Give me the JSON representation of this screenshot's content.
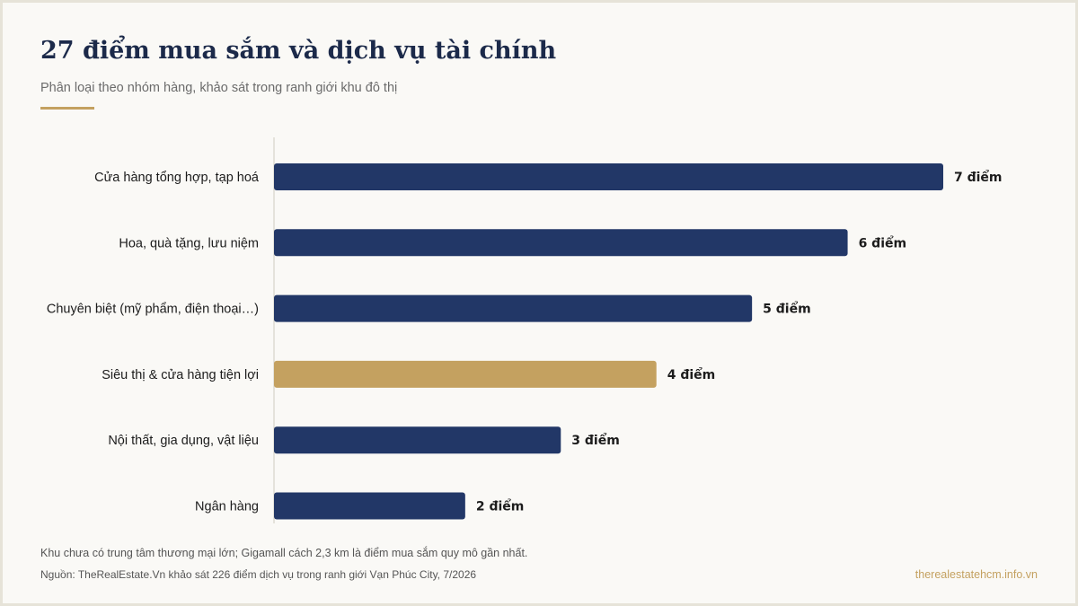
{
  "header": {
    "title": "27 điểm mua sắm và dịch vụ tài chính",
    "subtitle": "Phân loại theo nhóm hàng, khảo sát trong ranh giới khu đô thị"
  },
  "colors": {
    "primary": "#223767",
    "highlight": "#c4a160",
    "axis": "#dddad2",
    "label": "#1c1c1c"
  },
  "chart_data": {
    "type": "bar",
    "orientation": "horizontal",
    "categories": [
      "Cửa hàng tổng hợp, tạp hoá",
      "Hoa, quà tặng, lưu niệm",
      "Chuyên biệt (mỹ phẩm, điện thoại…)",
      "Siêu thị & cửa hàng tiện lợi",
      "Nội thất, gia dụng, vật liệu",
      "Ngân hàng"
    ],
    "values": [
      7,
      6,
      5,
      4,
      3,
      2
    ],
    "data_labels": [
      "7 điểm",
      "6 điểm",
      "5 điểm",
      "4 điểm",
      "3 điểm",
      "2 điểm"
    ],
    "highlight_index": 3,
    "xlim": [
      0,
      7
    ],
    "grid": false,
    "legend": "none"
  },
  "footer": {
    "note": "Khu chưa có trung tâm thương mại lớn; Gigamall cách 2,3 km là điểm mua sắm quy mô gần nhất.",
    "source": "Nguồn: TheRealEstate.Vn khảo sát 226 điểm dịch vụ trong ranh giới Vạn Phúc City, 7/2026",
    "site": "therealestatehcm.info.vn"
  }
}
